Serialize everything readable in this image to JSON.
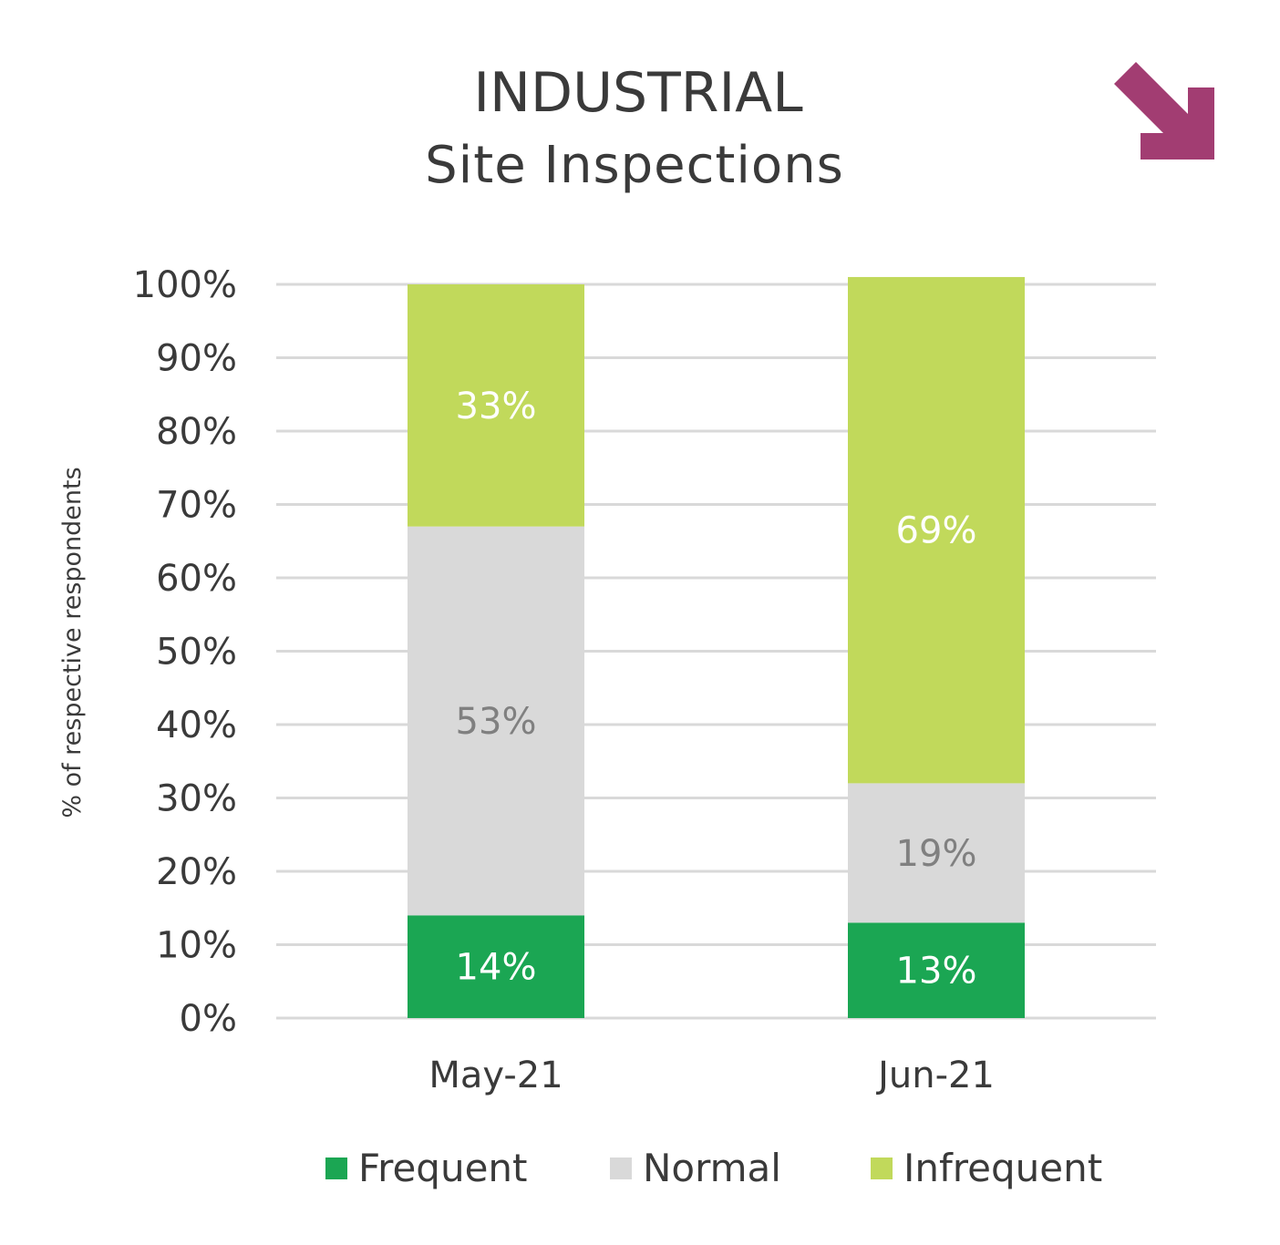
{
  "chart_data": {
    "type": "bar",
    "stacked": true,
    "title": "INDUSTRIAL",
    "subtitle": "Site Inspections",
    "ylabel": "% of respective respondents",
    "xlabel": "",
    "ylim": [
      0,
      100
    ],
    "yticks": [
      "0%",
      "10%",
      "20%",
      "30%",
      "40%",
      "50%",
      "60%",
      "70%",
      "80%",
      "90%",
      "100%"
    ],
    "categories": [
      "May-21",
      "Jun-21"
    ],
    "series": [
      {
        "name": "Frequent",
        "values": [
          14,
          13
        ],
        "labels": [
          "14%",
          "13%"
        ],
        "color": "#1ba653",
        "label_color": "#ffffff"
      },
      {
        "name": "Normal",
        "values": [
          53,
          19
        ],
        "labels": [
          "53%",
          "19%"
        ],
        "color": "#d9d9d9",
        "label_color": "#808080"
      },
      {
        "name": "Infrequent",
        "values": [
          33,
          69
        ],
        "labels": [
          "33%",
          "69%"
        ],
        "color": "#c1d95b",
        "label_color": "#ffffff"
      }
    ],
    "grid": true,
    "grid_color": "#d9d9d9",
    "legend_position": "bottom",
    "arrow_icon": "arrow-down-right-icon",
    "arrow_color": "#a23d72"
  }
}
